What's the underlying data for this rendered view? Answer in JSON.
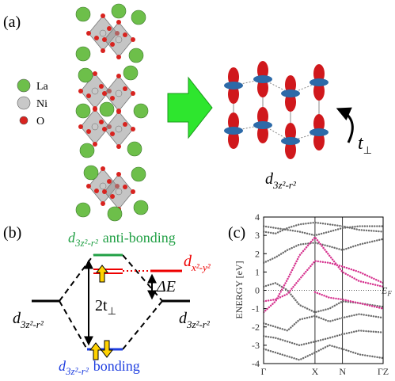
{
  "panel_a": {
    "label": "(a)",
    "legend": [
      {
        "name": "La",
        "color": "#6dbf4a"
      },
      {
        "name": "Ni",
        "color": "#c8c8c8"
      },
      {
        "name": "O",
        "color": "#d8231f"
      }
    ],
    "hopping": {
      "symbol": "t",
      "subscript": "⊥"
    },
    "orbital": {
      "symbol": "d",
      "subscript": "3z²-r²"
    }
  },
  "panel_b": {
    "label": "(b)",
    "antibonding": {
      "symbol": "d",
      "subscript": "3z²-r²",
      "text": "anti-bonding"
    },
    "dx2": {
      "symbol": "d",
      "subscript": "x²-y²"
    },
    "delta": "ΔE",
    "splitting": {
      "text": "2t",
      "subscript": "⊥"
    },
    "left": {
      "symbol": "d",
      "subscript": "3z²-r²"
    },
    "right": {
      "symbol": "d",
      "subscript": "3z²-r²"
    },
    "bonding": {
      "symbol": "d",
      "subscript": "3z²-r²",
      "text": "bonding"
    }
  },
  "chart_data": {
    "type": "line",
    "label": "(c)",
    "ylabel": "ENERGY [eV]",
    "ylim": [
      -4,
      4
    ],
    "yticks": [
      -4,
      -3,
      -2,
      -1,
      0,
      1,
      2,
      3,
      4
    ],
    "xlim": [
      0,
      1
    ],
    "xticks": [
      {
        "value": 0,
        "label": "Γ"
      },
      {
        "value": 0.43,
        "label": "X"
      },
      {
        "value": 0.66,
        "label": "N"
      },
      {
        "value": 1,
        "label": "ΓZ"
      }
    ],
    "fermi_level": 0,
    "fermi_label": {
      "symbol": "E",
      "subscript": "F"
    },
    "x": [
      0,
      0.1,
      0.2,
      0.3,
      0.43,
      0.55,
      0.66,
      0.8,
      1
    ],
    "series": [
      {
        "color": "#6b6b6b",
        "values": [
          3.5,
          3.4,
          3.3,
          3.2,
          3.0,
          3.2,
          3.4,
          3.5,
          3.5
        ]
      },
      {
        "color": "#6b6b6b",
        "values": [
          3.2,
          3.1,
          3.4,
          3.6,
          3.7,
          3.6,
          3.5,
          3.3,
          3.2
        ]
      },
      {
        "color": "#6b6b6b",
        "values": [
          1.5,
          1.8,
          2.2,
          2.5,
          2.6,
          2.4,
          2.2,
          2.5,
          2.8
        ]
      },
      {
        "color": "#6b6b6b",
        "values": [
          0.2,
          0.4,
          0.0,
          -0.8,
          -1.2,
          -1.0,
          -0.6,
          -0.7,
          -0.9
        ]
      },
      {
        "color": "#6b6b6b",
        "values": [
          -1.8,
          -2.0,
          -2.2,
          -1.6,
          -1.4,
          -1.7,
          -1.5,
          -1.3,
          -1.5
        ]
      },
      {
        "color": "#6b6b6b",
        "values": [
          -2.5,
          -2.6,
          -2.8,
          -3.0,
          -2.8,
          -2.6,
          -2.4,
          -2.2,
          -2.3
        ]
      },
      {
        "color": "#6b6b6b",
        "values": [
          -3.2,
          -3.4,
          -3.6,
          -3.8,
          -3.4,
          -3.0,
          -3.2,
          -3.5,
          -3.7
        ]
      },
      {
        "color": "#d6338f",
        "values": [
          -1.2,
          -0.6,
          0.6,
          1.9,
          2.9,
          1.9,
          1.0,
          0.5,
          0.2
        ]
      },
      {
        "color": "#d6338f",
        "values": [
          -0.6,
          -0.5,
          -0.2,
          0.6,
          1.6,
          1.5,
          1.3,
          1.0,
          0.4
        ]
      },
      {
        "color": "#d6338f",
        "values": [
          null,
          null,
          null,
          null,
          -0.1,
          -0.4,
          -0.5,
          -0.7,
          -1.0
        ]
      }
    ]
  }
}
